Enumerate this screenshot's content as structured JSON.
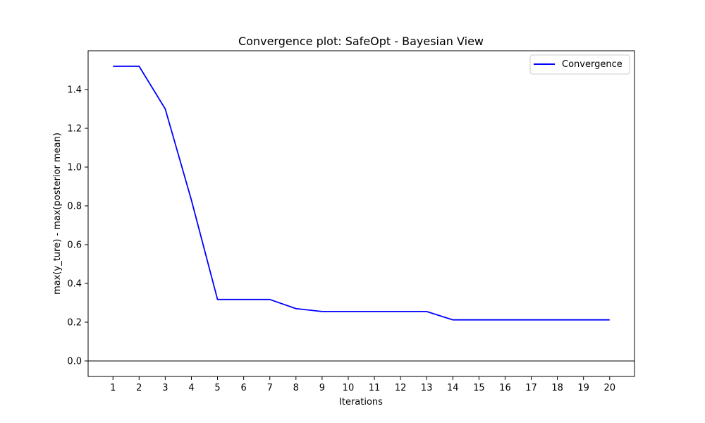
{
  "chart_data": {
    "type": "line",
    "title": "Convergence plot: SafeOpt - Bayesian View",
    "xlabel": "Iterations",
    "ylabel": "max(y_ture) - max(posterior mean)",
    "x": [
      1,
      2,
      3,
      4,
      5,
      6,
      7,
      8,
      9,
      10,
      11,
      12,
      13,
      14,
      15,
      16,
      17,
      18,
      19,
      20
    ],
    "xticks": [
      "1",
      "2",
      "3",
      "4",
      "5",
      "6",
      "7",
      "8",
      "9",
      "10",
      "11",
      "12",
      "13",
      "14",
      "15",
      "16",
      "17",
      "18",
      "19",
      "20"
    ],
    "yticks": [
      "0.0",
      "0.2",
      "0.4",
      "0.6",
      "0.8",
      "1.0",
      "1.2",
      "1.4"
    ],
    "ytick_values": [
      0.0,
      0.2,
      0.4,
      0.6,
      0.8,
      1.0,
      1.2,
      1.4
    ],
    "xlim": [
      0.05,
      20.95
    ],
    "ylim": [
      -0.08,
      1.6
    ],
    "series": [
      {
        "name": "Convergence",
        "color": "#0000ff",
        "values": [
          1.52,
          1.52,
          1.3,
          0.83,
          0.317,
          0.317,
          0.317,
          0.27,
          0.255,
          0.255,
          0.255,
          0.255,
          0.255,
          0.212,
          0.212,
          0.212,
          0.212,
          0.212,
          0.212,
          0.212
        ]
      }
    ],
    "reference_line": {
      "y": 0.0,
      "color": "#000000"
    },
    "legend": "top-right",
    "grid": false
  }
}
